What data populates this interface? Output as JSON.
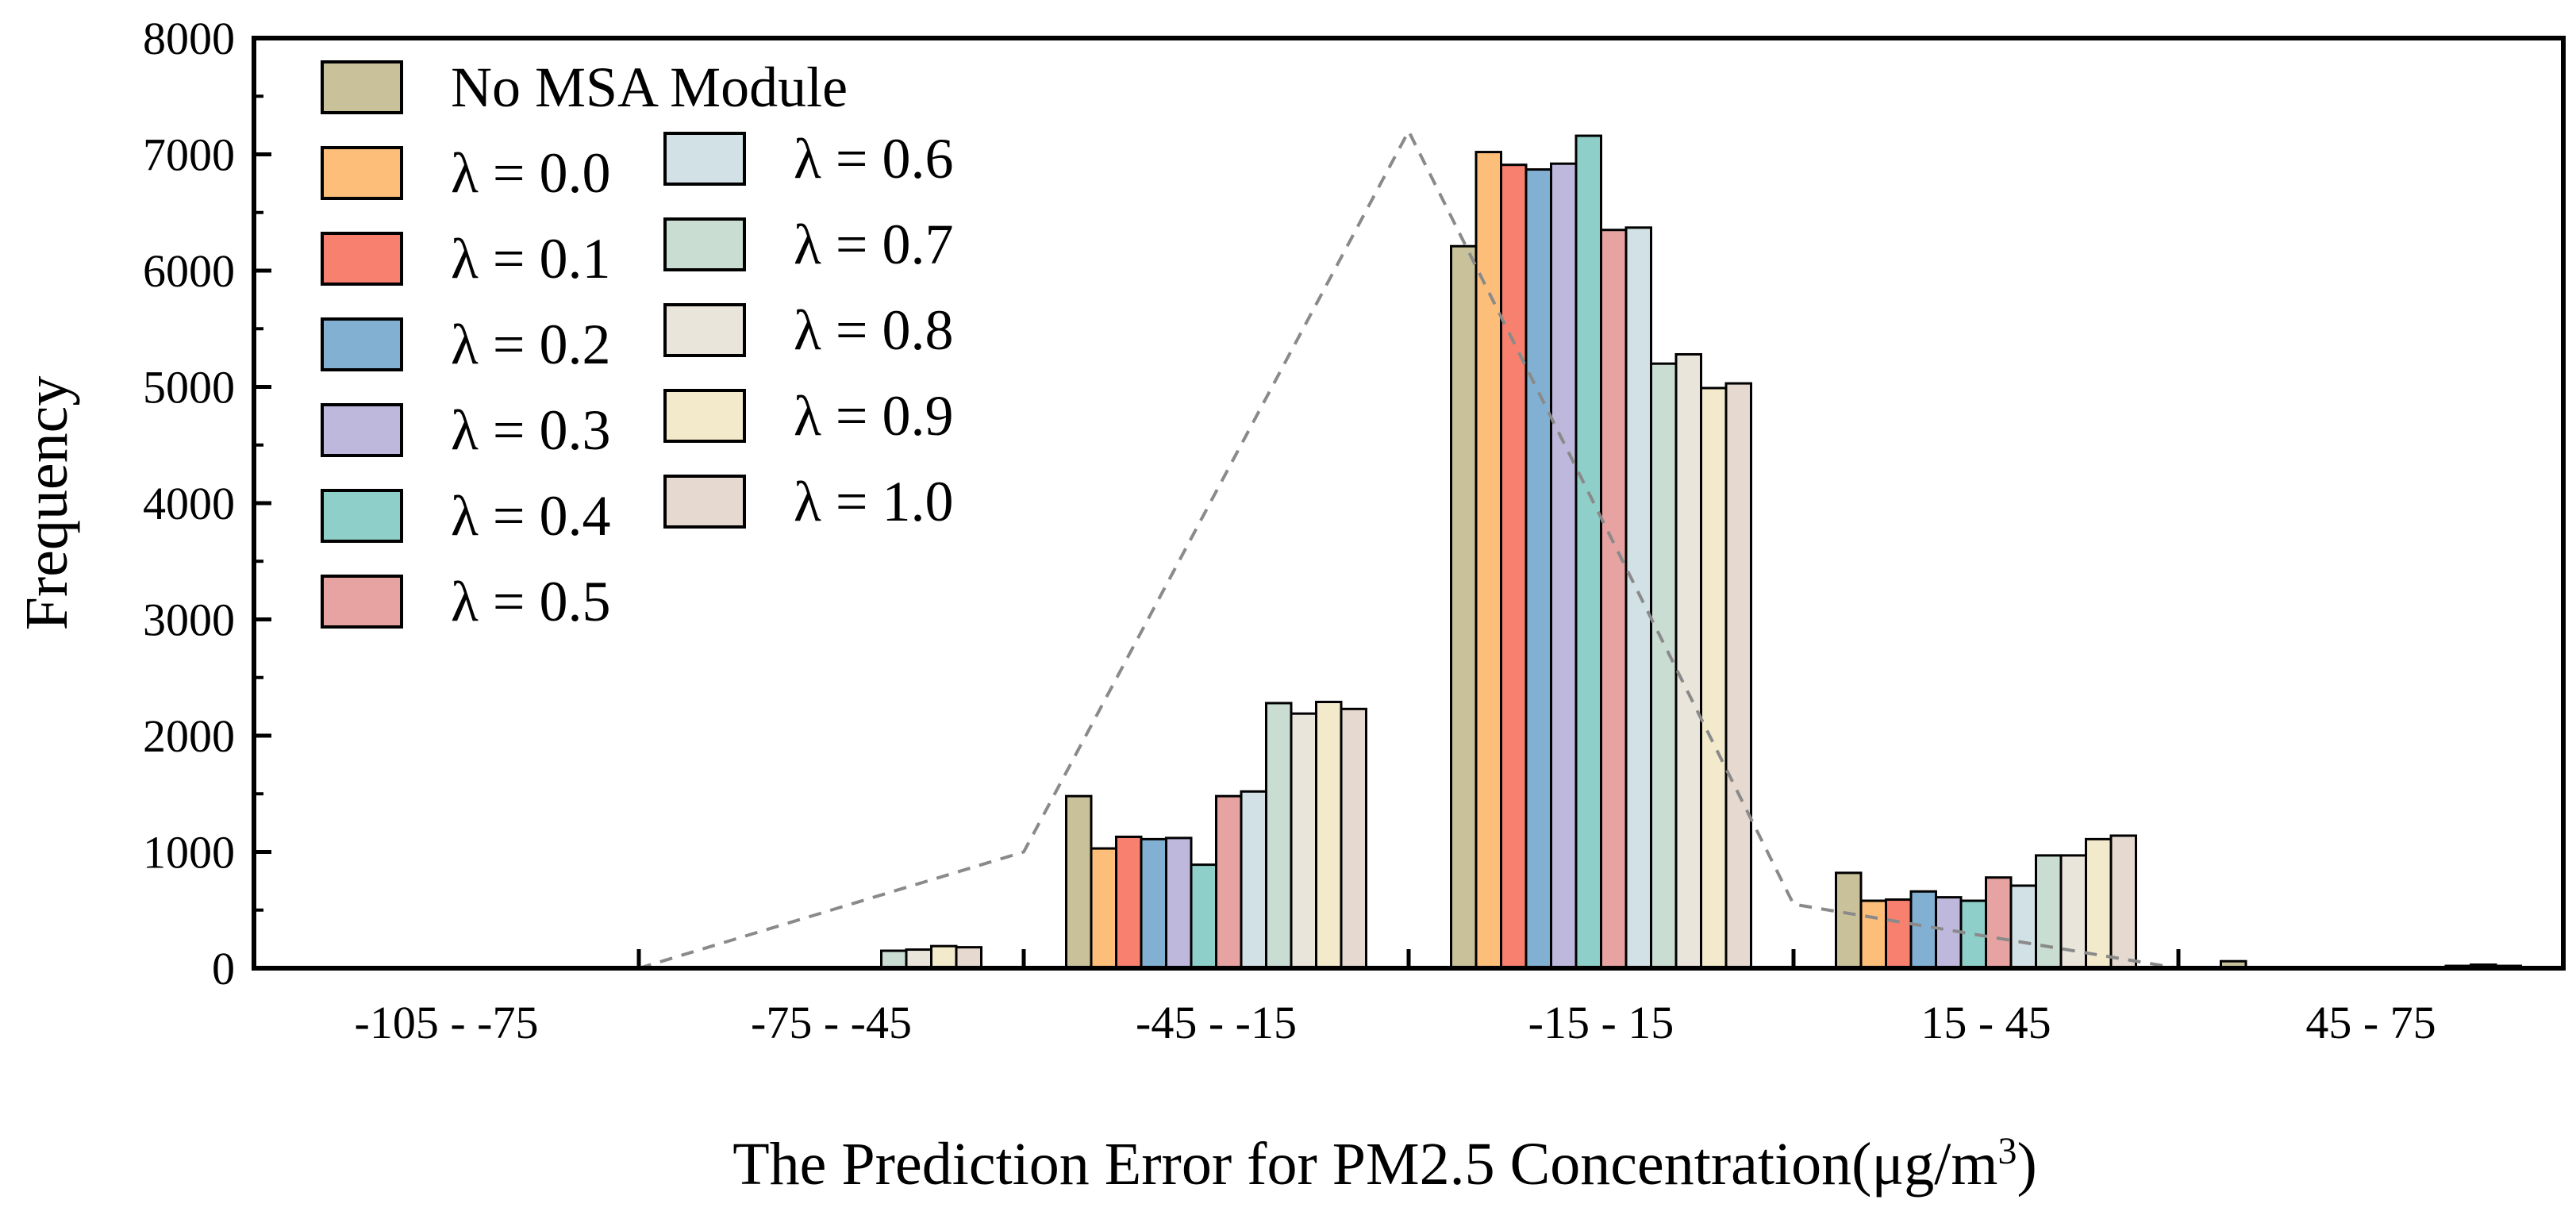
{
  "chart_data": {
    "type": "bar",
    "title": "",
    "xlabel": "The Prediction Error for PM2.5 Concentration(μg/m",
    "xlabel_sup": "3",
    "xlabel_end": ")",
    "ylabel": "Frequency",
    "ylim": [
      0,
      8000
    ],
    "yticks": [
      0,
      1000,
      2000,
      3000,
      4000,
      5000,
      6000,
      7000,
      8000
    ],
    "ytick_labels": [
      "0",
      "1000",
      "2000",
      "3000",
      "4000",
      "5000",
      "6000",
      "7000",
      "8000"
    ],
    "categories": [
      "-105 - -75",
      "-75 - -45",
      "-45 - -15",
      "-15 - 15",
      "15 - 45",
      "45 - 75"
    ],
    "legend_position": "top-left",
    "trend_line": {
      "style": "dashed",
      "color": "#8a8a8a",
      "values": [
        0,
        1000,
        7200,
        550,
        0
      ]
    },
    "series": [
      {
        "name": "No MSA Module",
        "color": "#C8C19A",
        "values": [
          0,
          10,
          1480,
          6210,
          820,
          60
        ]
      },
      {
        "name": "λ = 0.0",
        "color": "#FDBE7A",
        "values": [
          0,
          0,
          1030,
          7020,
          580,
          0
        ]
      },
      {
        "name": "λ = 0.1",
        "color": "#F8806E",
        "values": [
          0,
          0,
          1130,
          6910,
          590,
          0
        ]
      },
      {
        "name": "λ = 0.2",
        "color": "#82B0D2",
        "values": [
          0,
          0,
          1110,
          6870,
          660,
          0
        ]
      },
      {
        "name": "λ = 0.3",
        "color": "#BEB8DC",
        "values": [
          0,
          0,
          1120,
          6920,
          610,
          0
        ]
      },
      {
        "name": "λ = 0.4",
        "color": "#8ECFC9",
        "values": [
          0,
          0,
          890,
          7160,
          580,
          0
        ]
      },
      {
        "name": "λ = 0.5",
        "color": "#E7A3A1",
        "values": [
          0,
          0,
          1480,
          6350,
          780,
          0
        ]
      },
      {
        "name": "λ = 0.6",
        "color": "#D1E1E6",
        "values": [
          0,
          10,
          1520,
          6370,
          710,
          0
        ]
      },
      {
        "name": "λ = 0.7",
        "color": "#C9DDD2",
        "values": [
          0,
          150,
          2280,
          5200,
          970,
          10
        ]
      },
      {
        "name": "λ = 0.8",
        "color": "#E9E5DA",
        "values": [
          0,
          160,
          2190,
          5280,
          970,
          20
        ]
      },
      {
        "name": "λ = 0.9",
        "color": "#F3EACB",
        "values": [
          0,
          190,
          2290,
          4990,
          1110,
          30
        ]
      },
      {
        "name": "λ = 1.0",
        "color": "#E6D9CF",
        "values": [
          0,
          180,
          2230,
          5030,
          1140,
          20
        ]
      }
    ]
  }
}
